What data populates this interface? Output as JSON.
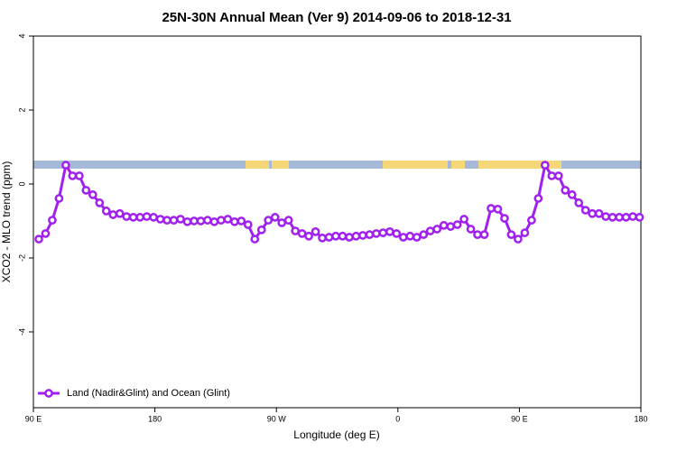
{
  "chart_data": {
    "type": "line",
    "title": "25N-30N Annual Mean (Ver 9)   2014-09-06 to 2018-12-31",
    "x_label": "Longitude (deg E)",
    "y_label": "XCO2 - MLO trend (ppm)",
    "xlim": [
      90,
      540
    ],
    "xticks": [
      {
        "value": 90,
        "label": "90 E"
      },
      180,
      {
        "value": 270,
        "label": "90 W"
      },
      {
        "value": 360,
        "label": "0"
      },
      {
        "value": 450,
        "label": "90 E"
      },
      {
        "value": 540,
        "label": "180"
      }
    ],
    "ylim": [
      -6.05,
      4
    ],
    "yticks": [
      -4,
      -2,
      0,
      2,
      4
    ],
    "legend": "bottom-left",
    "x": [
      94,
      99,
      104,
      109,
      114,
      119,
      124,
      129,
      134,
      139,
      144,
      149,
      154,
      159,
      164,
      169,
      174,
      179,
      184,
      189,
      194,
      199,
      204,
      209,
      214,
      219,
      224,
      229,
      234,
      239,
      244,
      249,
      254,
      259,
      264,
      269,
      274,
      279,
      284,
      289,
      294,
      299,
      304,
      309,
      314,
      319,
      324,
      329,
      334,
      339,
      344,
      349,
      354,
      359,
      364,
      369,
      374,
      379,
      384,
      389,
      394,
      399,
      404,
      409,
      414,
      419,
      424,
      429,
      434,
      439,
      444,
      449,
      454,
      459,
      464,
      469,
      474,
      479,
      484,
      489,
      494,
      499,
      504,
      509,
      514,
      519,
      524,
      529,
      534,
      539
    ],
    "series": [
      {
        "name": "Land (Nadir&Glint) and Ocean (Glint)",
        "color": "#a020f0",
        "values": [
          -1.49,
          -1.34,
          -0.98,
          -0.39,
          0.51,
          0.22,
          0.22,
          -0.17,
          -0.29,
          -0.51,
          -0.73,
          -0.83,
          -0.8,
          -0.88,
          -0.9,
          -0.9,
          -0.88,
          -0.9,
          -0.95,
          -0.98,
          -0.98,
          -0.95,
          -1.02,
          -1.0,
          -1.0,
          -0.98,
          -1.02,
          -0.98,
          -0.95,
          -1.02,
          -1.0,
          -1.1,
          -1.49,
          -1.24,
          -0.98,
          -0.9,
          -1.05,
          -0.98,
          -1.27,
          -1.34,
          -1.41,
          -1.29,
          -1.46,
          -1.44,
          -1.41,
          -1.41,
          -1.44,
          -1.41,
          -1.39,
          -1.37,
          -1.34,
          -1.32,
          -1.29,
          -1.34,
          -1.44,
          -1.41,
          -1.44,
          -1.37,
          -1.27,
          -1.22,
          -1.12,
          -1.15,
          -1.1,
          -0.95,
          -1.22,
          -1.37,
          -1.37,
          -0.66,
          -0.68,
          -0.93,
          -1.37,
          -1.49,
          -1.32,
          -0.98,
          -0.39,
          0.51,
          0.22,
          0.22,
          -0.17,
          -0.29,
          -0.51,
          -0.71,
          -0.8,
          -0.8,
          -0.88,
          -0.9,
          -0.9,
          -0.9,
          -0.88,
          -0.9
        ]
      }
    ]
  }
}
